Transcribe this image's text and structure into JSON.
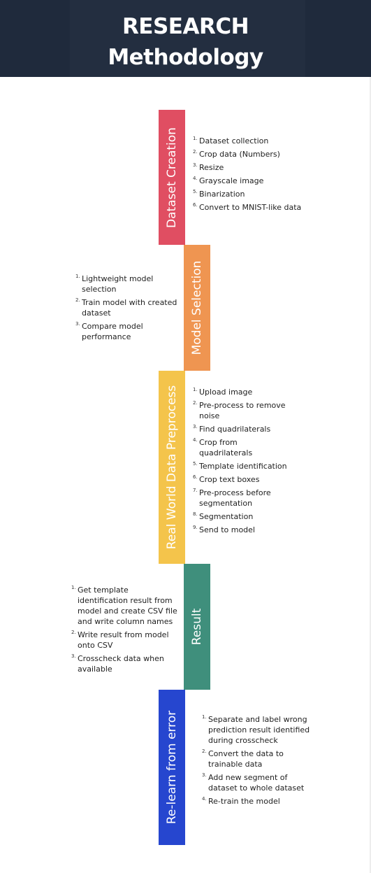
{
  "header": {
    "title_line1": "RESEARCH",
    "title_line2": "Methodology"
  },
  "colors": {
    "header_bg": "#1f2a3c",
    "dataset_creation": "#e04e62",
    "model_selection": "#ef9551",
    "real_world_preprocess": "#f4c44b",
    "result": "#3f8f7c",
    "relearn": "#2646cf"
  },
  "stages": [
    {
      "label": "Dataset Creation",
      "steps": [
        {
          "num": "1.",
          "text": "Dataset collection"
        },
        {
          "num": "2.",
          "text": "Crop data (Numbers)"
        },
        {
          "num": "3.",
          "text": "Resize"
        },
        {
          "num": "4.",
          "text": "Grayscale image"
        },
        {
          "num": "5.",
          "text": "Binarization"
        },
        {
          "num": "6.",
          "text": "Convert to MNIST-like data"
        }
      ]
    },
    {
      "label": "Model Selection",
      "steps": [
        {
          "num": "1.",
          "text": "Lightweight model selection"
        },
        {
          "num": "2.",
          "text": "Train model with created dataset"
        },
        {
          "num": "3.",
          "text": "Compare model performance"
        }
      ]
    },
    {
      "label": "Real World Data Preprocess",
      "steps": [
        {
          "num": "1.",
          "text": "Upload image"
        },
        {
          "num": "2.",
          "text": "Pre-process to remove noise"
        },
        {
          "num": "3.",
          "text": "Find quadrilaterals"
        },
        {
          "num": "4.",
          "text": "Crop from quadrilaterals"
        },
        {
          "num": "5.",
          "text": "Template identification"
        },
        {
          "num": "6.",
          "text": "Crop text boxes"
        },
        {
          "num": "7.",
          "text": "Pre-process before segmentation"
        },
        {
          "num": "8.",
          "text": "Segmentation"
        },
        {
          "num": "9.",
          "text": "Send to model"
        }
      ]
    },
    {
      "label": "Result",
      "steps": [
        {
          "num": "1.",
          "text": "Get template identification result from model and create CSV file and write column names"
        },
        {
          "num": "2.",
          "text": "Write result from model onto CSV"
        },
        {
          "num": "3.",
          "text": "Crosscheck data when available"
        }
      ]
    },
    {
      "label": "Re-learn from error",
      "steps": [
        {
          "num": "1.",
          "text": "Separate and label wrong prediction result identified during crosscheck"
        },
        {
          "num": "2.",
          "text": "Convert the data to trainable data"
        },
        {
          "num": "3.",
          "text": "Add new segment of dataset to whole dataset"
        },
        {
          "num": "4.",
          "text": "Re-train the model"
        }
      ]
    }
  ]
}
